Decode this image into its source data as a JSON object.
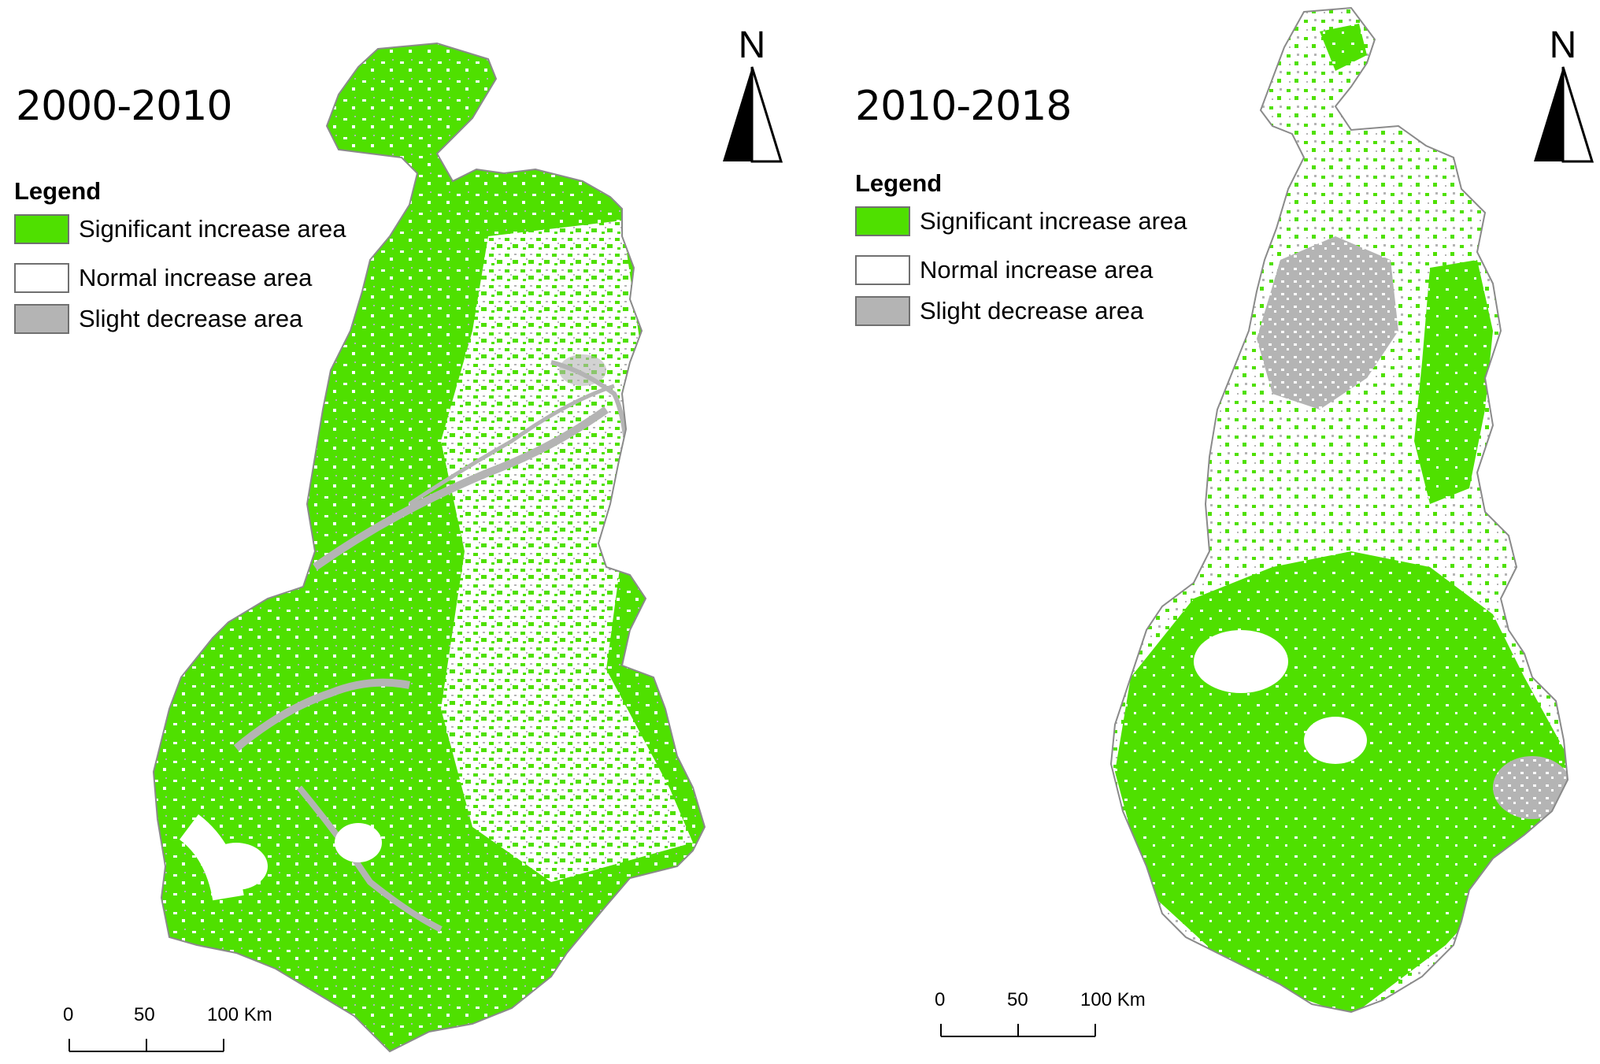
{
  "panels": [
    {
      "title": "2000-2010",
      "legend": {
        "title": "Legend",
        "items": [
          {
            "label": "Significant increase area",
            "color": "#4fe000"
          },
          {
            "label": "Normal increase area",
            "color": "#ffffff"
          },
          {
            "label": "Slight decrease area",
            "color": "#b4b4b4"
          }
        ]
      },
      "north": "N",
      "scale": {
        "ticks": [
          "0",
          "50",
          "100 Km"
        ]
      }
    },
    {
      "title": "2010-2018",
      "legend": {
        "title": "Legend",
        "items": [
          {
            "label": "Significant increase area",
            "color": "#4fe000"
          },
          {
            "label": "Normal increase area",
            "color": "#ffffff"
          },
          {
            "label": "Slight decrease area",
            "color": "#b4b4b4"
          }
        ]
      },
      "north": "N",
      "scale": {
        "ticks": [
          "0",
          "50",
          "100 Km"
        ]
      }
    }
  ],
  "colors": {
    "significant": "#4fe000",
    "normal": "#ffffff",
    "decrease": "#b4b4b4",
    "outline": "#8a8a8a"
  }
}
